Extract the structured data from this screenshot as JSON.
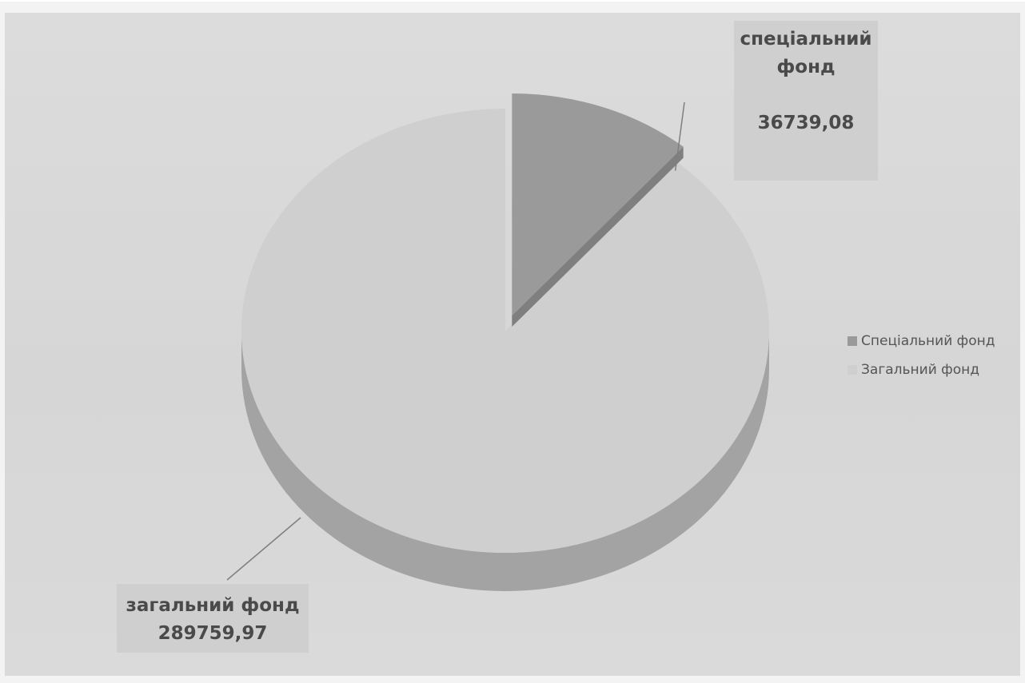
{
  "colors": {
    "special_top": "#9a9a9a",
    "special_side": "#7f7f7f",
    "general_top": "#cfcfcf",
    "general_side": "#a3a3a3",
    "leader_line": "#7f7f7f"
  },
  "chart_data": {
    "type": "pie",
    "style": "3d-exploded",
    "title": "",
    "slices": [
      {
        "label": "Спеціальний фонд",
        "value": 36739.08,
        "color": "#9a9a9a"
      },
      {
        "label": "Загальний фонд",
        "value": 289759.97,
        "color": "#cfcfcf"
      }
    ],
    "data_labels": {
      "special": {
        "name_line1": "спеціальний",
        "name_line2": "фонд",
        "value": "36739,08"
      },
      "general": {
        "name": "загальний фонд",
        "value": "289759,97"
      }
    },
    "legend": {
      "position": "right",
      "items": [
        "Спеціальний фонд",
        "Загальний фонд"
      ]
    }
  }
}
